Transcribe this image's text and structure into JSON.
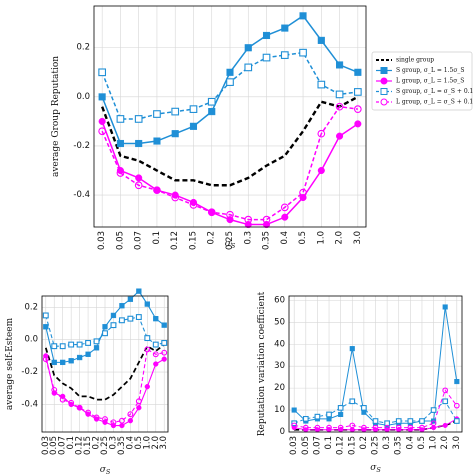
{
  "chart_data": [
    {
      "type": "line",
      "xlabel": "σ_S",
      "ylabel": "average Group Reputation",
      "ylim": [
        -0.53,
        0.37
      ],
      "yticks": [
        "0.2",
        "0.0",
        "-0.2",
        "-0.4"
      ],
      "ytick_values": [
        0.2,
        0.0,
        -0.2,
        -0.4
      ],
      "categories": [
        "0.03",
        "0.05",
        "0.07",
        "0.1",
        "0.12",
        "0.15",
        "0.2",
        "0.25",
        "0.3",
        "0.35",
        "0.4",
        "0.5",
        "1.0",
        "2.0",
        "3.0"
      ],
      "grid": true,
      "legend": "right",
      "series": [
        {
          "name": "single group",
          "color": "#000000",
          "style": "dashed",
          "marker": "none",
          "values": [
            -0.04,
            -0.24,
            -0.26,
            -0.3,
            -0.34,
            -0.34,
            -0.36,
            -0.36,
            -0.33,
            -0.28,
            -0.24,
            -0.14,
            -0.02,
            -0.04,
            0.0
          ]
        },
        {
          "name": "S group, σ_L = 1.5σ_S",
          "color": "#1f8fd6",
          "style": "solid",
          "marker": "square-filled",
          "values": [
            0.0,
            -0.19,
            -0.19,
            -0.18,
            -0.15,
            -0.12,
            -0.06,
            0.1,
            0.2,
            0.25,
            0.28,
            0.33,
            0.23,
            0.13,
            0.1
          ]
        },
        {
          "name": "L group, σ_L = 1.5σ_S",
          "color": "#ff00ff",
          "style": "solid",
          "marker": "circle-filled",
          "values": [
            -0.1,
            -0.3,
            -0.33,
            -0.38,
            -0.4,
            -0.43,
            -0.47,
            -0.5,
            -0.52,
            -0.52,
            -0.49,
            -0.41,
            -0.3,
            -0.16,
            -0.11
          ]
        },
        {
          "name": "S group, σ_L = σ_S + 0.1",
          "color": "#1f8fd6",
          "style": "dashed",
          "marker": "square-open",
          "values": [
            0.1,
            -0.09,
            -0.09,
            -0.07,
            -0.06,
            -0.05,
            -0.02,
            0.06,
            0.12,
            0.16,
            0.17,
            0.18,
            0.05,
            0.01,
            0.02
          ]
        },
        {
          "name": "L group, σ_L = σ_S + 0.1",
          "color": "#ff00ff",
          "style": "dashed",
          "marker": "circle-open",
          "values": [
            -0.14,
            -0.31,
            -0.36,
            -0.38,
            -0.41,
            -0.44,
            -0.47,
            -0.48,
            -0.5,
            -0.5,
            -0.45,
            -0.39,
            -0.15,
            -0.04,
            -0.05
          ]
        }
      ]
    },
    {
      "type": "line",
      "xlabel": "σ_S",
      "ylabel": "average self-Esteem",
      "ylim": [
        -0.57,
        0.27
      ],
      "yticks": [
        "0.2",
        "0.0",
        "-0.2",
        "-0.4"
      ],
      "ytick_values": [
        0.2,
        0.0,
        -0.2,
        -0.4
      ],
      "categories": [
        "0.03",
        "0.05",
        "0.07",
        "0.1",
        "0.12",
        "0.15",
        "0.2",
        "0.25",
        "0.3",
        "0.35",
        "0.4",
        "0.5",
        "1.0",
        "2.0",
        "3.0"
      ],
      "grid": true,
      "series": [
        {
          "color": "#000000",
          "style": "dashed",
          "marker": "none",
          "values": [
            -0.05,
            -0.22,
            -0.27,
            -0.3,
            -0.35,
            -0.35,
            -0.37,
            -0.37,
            -0.34,
            -0.29,
            -0.24,
            -0.14,
            -0.04,
            -0.07,
            -0.03
          ]
        },
        {
          "color": "#1f8fd6",
          "style": "solid",
          "marker": "square-filled",
          "values": [
            0.08,
            -0.14,
            -0.14,
            -0.13,
            -0.11,
            -0.09,
            -0.05,
            0.08,
            0.15,
            0.21,
            0.25,
            0.3,
            0.22,
            0.13,
            0.09
          ]
        },
        {
          "color": "#ff00ff",
          "style": "solid",
          "marker": "circle-filled",
          "values": [
            -0.1,
            -0.33,
            -0.35,
            -0.4,
            -0.42,
            -0.46,
            -0.49,
            -0.51,
            -0.53,
            -0.53,
            -0.5,
            -0.42,
            -0.29,
            -0.15,
            -0.12
          ]
        },
        {
          "color": "#1f8fd6",
          "style": "dashed",
          "marker": "square-open",
          "values": [
            0.15,
            -0.04,
            -0.04,
            -0.03,
            -0.03,
            -0.02,
            -0.01,
            0.04,
            0.09,
            0.12,
            0.13,
            0.14,
            0.01,
            -0.03,
            -0.02
          ]
        },
        {
          "color": "#ff00ff",
          "style": "dashed",
          "marker": "circle-open",
          "values": [
            -0.12,
            -0.31,
            -0.37,
            -0.39,
            -0.42,
            -0.45,
            -0.48,
            -0.49,
            -0.51,
            -0.5,
            -0.46,
            -0.38,
            -0.06,
            -0.09,
            -0.08
          ]
        }
      ]
    },
    {
      "type": "line",
      "xlabel": "σ_S",
      "ylabel": "Reputation variation coefficient",
      "ylim": [
        0,
        62
      ],
      "yticks": [
        "0",
        "10",
        "20",
        "30",
        "40",
        "50",
        "60"
      ],
      "ytick_values": [
        0,
        10,
        20,
        30,
        40,
        50,
        60
      ],
      "categories": [
        "0.03",
        "0.05",
        "0.07",
        "0.1",
        "0.12",
        "0.15",
        "0.2",
        "0.25",
        "0.3",
        "0.35",
        "0.4",
        "0.5",
        "1.0",
        "2.0",
        "3.0"
      ],
      "grid": true,
      "series": [
        {
          "color": "#000000",
          "style": "dashed",
          "marker": "none",
          "values": [
            1,
            1,
            1,
            1,
            1,
            1,
            1,
            1,
            1,
            1,
            1,
            1,
            2,
            3,
            5
          ]
        },
        {
          "color": "#1f8fd6",
          "style": "solid",
          "marker": "square-filled",
          "values": [
            10,
            5,
            6,
            6,
            8,
            38,
            9,
            4,
            3,
            4,
            4,
            5,
            5,
            57,
            23
          ]
        },
        {
          "color": "#ff00ff",
          "style": "solid",
          "marker": "circle-filled",
          "values": [
            2,
            1,
            1,
            1,
            1,
            1,
            1,
            1,
            1,
            1,
            1,
            1,
            2,
            3,
            6
          ]
        },
        {
          "color": "#1f8fd6",
          "style": "dashed",
          "marker": "square-open",
          "values": [
            4,
            6,
            7,
            8,
            11,
            14,
            11,
            5,
            4,
            5,
            5,
            5,
            10,
            14,
            5
          ]
        },
        {
          "color": "#ff00ff",
          "style": "dashed",
          "marker": "circle-open",
          "values": [
            3,
            2,
            2,
            2,
            2,
            3,
            2,
            2,
            2,
            2,
            2,
            2,
            4,
            19,
            12
          ]
        }
      ]
    }
  ]
}
